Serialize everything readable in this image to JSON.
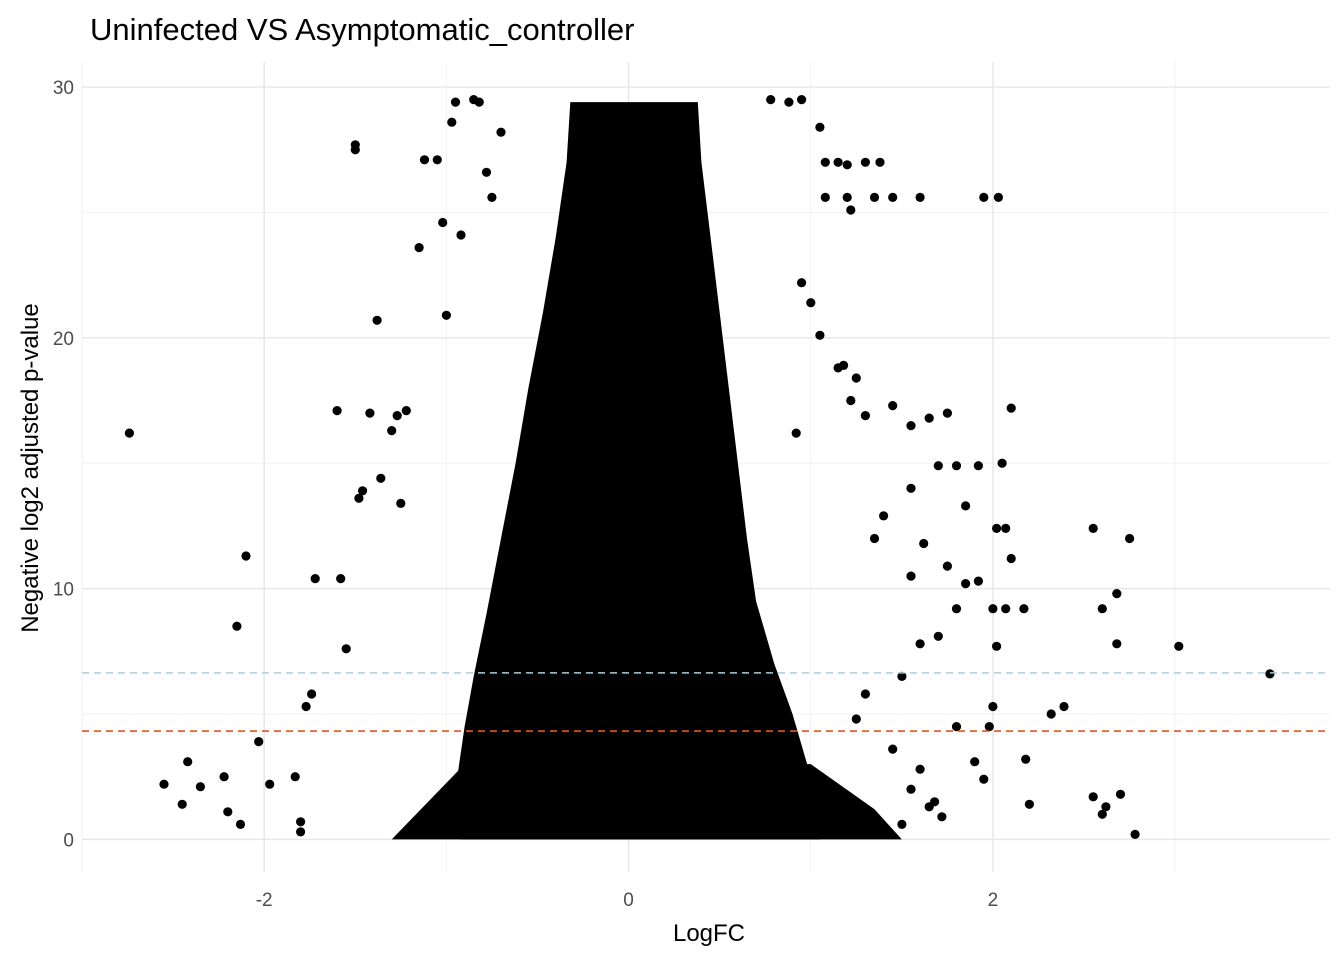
{
  "chart_data": {
    "type": "scatter",
    "title": "Uninfected  VS  Asymptomatic_controller",
    "xlabel": "LogFC",
    "ylabel": "Negative log2 adjusted p-value",
    "xlim": [
      -3.0,
      3.85
    ],
    "ylim": [
      -1.3,
      31
    ],
    "x_ticks": [
      -2,
      0,
      2
    ],
    "y_ticks": [
      0,
      10,
      20,
      30
    ],
    "x_minor_gridlines": [
      -3,
      -1,
      1,
      3
    ],
    "y_minor_gridlines": [
      5,
      15,
      25
    ],
    "grid": true,
    "legend": "none",
    "point_color": "#000000",
    "thresholds": [
      {
        "y": 6.64,
        "color": "#a6cee3",
        "style": "dashed"
      },
      {
        "y": 4.32,
        "color": "#e0581b",
        "style": "dashed"
      }
    ],
    "points": [
      [
        -2.74,
        16.2
      ],
      [
        -2.55,
        2.2
      ],
      [
        -2.45,
        1.4
      ],
      [
        -2.42,
        3.1
      ],
      [
        -2.35,
        2.1
      ],
      [
        -2.22,
        2.5
      ],
      [
        -2.2,
        1.1
      ],
      [
        -2.15,
        8.5
      ],
      [
        -2.13,
        0.6
      ],
      [
        -2.1,
        11.3
      ],
      [
        -2.03,
        3.9
      ],
      [
        -1.97,
        2.2
      ],
      [
        -1.83,
        2.5
      ],
      [
        -1.8,
        0.7
      ],
      [
        -1.8,
        0.3
      ],
      [
        -1.77,
        5.3
      ],
      [
        -1.74,
        5.8
      ],
      [
        -1.72,
        10.4
      ],
      [
        -1.6,
        17.1
      ],
      [
        -1.58,
        10.4
      ],
      [
        -1.55,
        7.6
      ],
      [
        -1.5,
        27.7
      ],
      [
        -1.5,
        27.5
      ],
      [
        -1.48,
        13.6
      ],
      [
        -1.46,
        13.9
      ],
      [
        -1.42,
        17.0
      ],
      [
        -1.38,
        20.7
      ],
      [
        -1.36,
        14.4
      ],
      [
        -1.3,
        16.3
      ],
      [
        -1.27,
        16.9
      ],
      [
        -1.25,
        13.4
      ],
      [
        -1.22,
        17.1
      ],
      [
        -1.15,
        23.6
      ],
      [
        -1.12,
        27.1
      ],
      [
        -1.05,
        27.1
      ],
      [
        -1.02,
        24.6
      ],
      [
        -1.0,
        20.9
      ],
      [
        -0.97,
        28.6
      ],
      [
        -0.95,
        29.4
      ],
      [
        -0.92,
        24.1
      ],
      [
        -0.85,
        29.5
      ],
      [
        -0.82,
        29.4
      ],
      [
        -0.78,
        26.6
      ],
      [
        -0.75,
        25.6
      ],
      [
        -0.7,
        28.2
      ],
      [
        2.75,
        12.0
      ],
      [
        2.78,
        0.2
      ],
      [
        2.7,
        1.8
      ],
      [
        2.68,
        7.8
      ],
      [
        2.68,
        9.8
      ],
      [
        2.6,
        9.2
      ],
      [
        2.55,
        12.4
      ],
      [
        2.62,
        1.3
      ],
      [
        2.6,
        1.0
      ],
      [
        2.55,
        1.7
      ],
      [
        3.02,
        7.7
      ],
      [
        3.52,
        6.6
      ],
      [
        2.39,
        5.3
      ],
      [
        2.32,
        5.0
      ],
      [
        2.18,
        3.2
      ],
      [
        2.1,
        11.2
      ],
      [
        2.02,
        12.4
      ],
      [
        2.07,
        12.4
      ],
      [
        2.1,
        17.2
      ],
      [
        2.05,
        15.0
      ],
      [
        1.95,
        25.6
      ],
      [
        2.03,
        25.6
      ],
      [
        1.92,
        14.9
      ],
      [
        1.85,
        13.3
      ],
      [
        1.85,
        10.2
      ],
      [
        1.92,
        10.3
      ],
      [
        2.0,
        9.2
      ],
      [
        2.07,
        9.2
      ],
      [
        2.17,
        9.2
      ],
      [
        1.98,
        4.5
      ],
      [
        2.02,
        7.7
      ],
      [
        2.0,
        5.3
      ],
      [
        1.9,
        3.1
      ],
      [
        1.95,
        2.4
      ],
      [
        2.2,
        1.4
      ],
      [
        1.08,
        27.0
      ],
      [
        1.15,
        27.0
      ],
      [
        1.2,
        26.9
      ],
      [
        1.3,
        27.0
      ],
      [
        1.38,
        27.0
      ],
      [
        1.08,
        25.6
      ],
      [
        1.2,
        25.6
      ],
      [
        1.35,
        25.6
      ],
      [
        1.45,
        25.6
      ],
      [
        1.6,
        25.6
      ],
      [
        1.22,
        25.1
      ],
      [
        0.95,
        29.5
      ],
      [
        0.88,
        29.4
      ],
      [
        1.05,
        28.4
      ],
      [
        0.78,
        29.5
      ],
      [
        1.15,
        18.8
      ],
      [
        1.25,
        18.4
      ],
      [
        1.22,
        17.5
      ],
      [
        1.45,
        17.3
      ],
      [
        1.55,
        16.5
      ],
      [
        1.3,
        16.9
      ],
      [
        1.65,
        16.8
      ],
      [
        1.75,
        17.0
      ],
      [
        1.7,
        14.9
      ],
      [
        1.8,
        14.9
      ],
      [
        1.55,
        14.0
      ],
      [
        1.4,
        12.9
      ],
      [
        1.35,
        12.0
      ],
      [
        1.62,
        11.8
      ],
      [
        1.75,
        10.9
      ],
      [
        1.55,
        10.5
      ],
      [
        1.8,
        9.2
      ],
      [
        1.7,
        8.1
      ],
      [
        1.6,
        7.8
      ],
      [
        1.5,
        6.5
      ],
      [
        1.3,
        5.8
      ],
      [
        1.25,
        4.8
      ],
      [
        1.45,
        3.6
      ],
      [
        1.6,
        2.8
      ],
      [
        1.68,
        1.5
      ],
      [
        1.55,
        2.0
      ],
      [
        1.72,
        0.9
      ],
      [
        1.5,
        0.6
      ],
      [
        1.65,
        1.3
      ],
      [
        1.8,
        4.5
      ],
      [
        0.95,
        22.2
      ],
      [
        1.0,
        21.4
      ],
      [
        1.05,
        20.1
      ],
      [
        1.18,
        18.9
      ],
      [
        0.92,
        16.2
      ]
    ]
  }
}
